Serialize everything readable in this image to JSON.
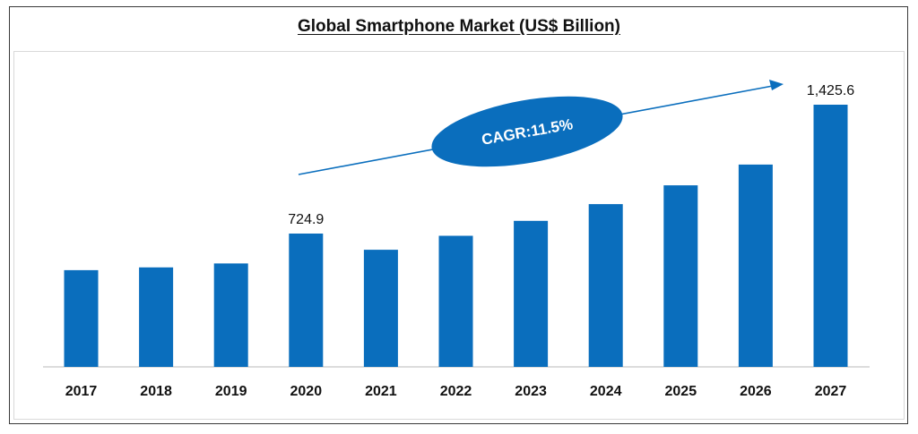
{
  "chart_data": {
    "type": "bar",
    "title": "Global Smartphone Market (US$ Billion)",
    "xlabel": "",
    "ylabel": "",
    "categories": [
      "2017",
      "2018",
      "2019",
      "2020",
      "2021",
      "2022",
      "2023",
      "2024",
      "2025",
      "2026",
      "2027"
    ],
    "values": [
      526.0,
      541.0,
      562.5,
      724.9,
      637.0,
      713.0,
      794.0,
      885.0,
      987.0,
      1100.0,
      1425.6
    ],
    "bar_values_note": "only 2020 and 2027 values are labeled",
    "data_labels": [
      {
        "category": "2020",
        "text": "724.9"
      },
      {
        "category": "2027",
        "text": "1,425.6"
      }
    ],
    "annotation": {
      "text": "CAGR:11.5%"
    },
    "ylim": [
      0,
      1425.6
    ],
    "grid": false,
    "colors": {
      "bar": "#0a6ebd",
      "axis": "#d0d0d0",
      "badge": "#0a6ebd"
    }
  }
}
